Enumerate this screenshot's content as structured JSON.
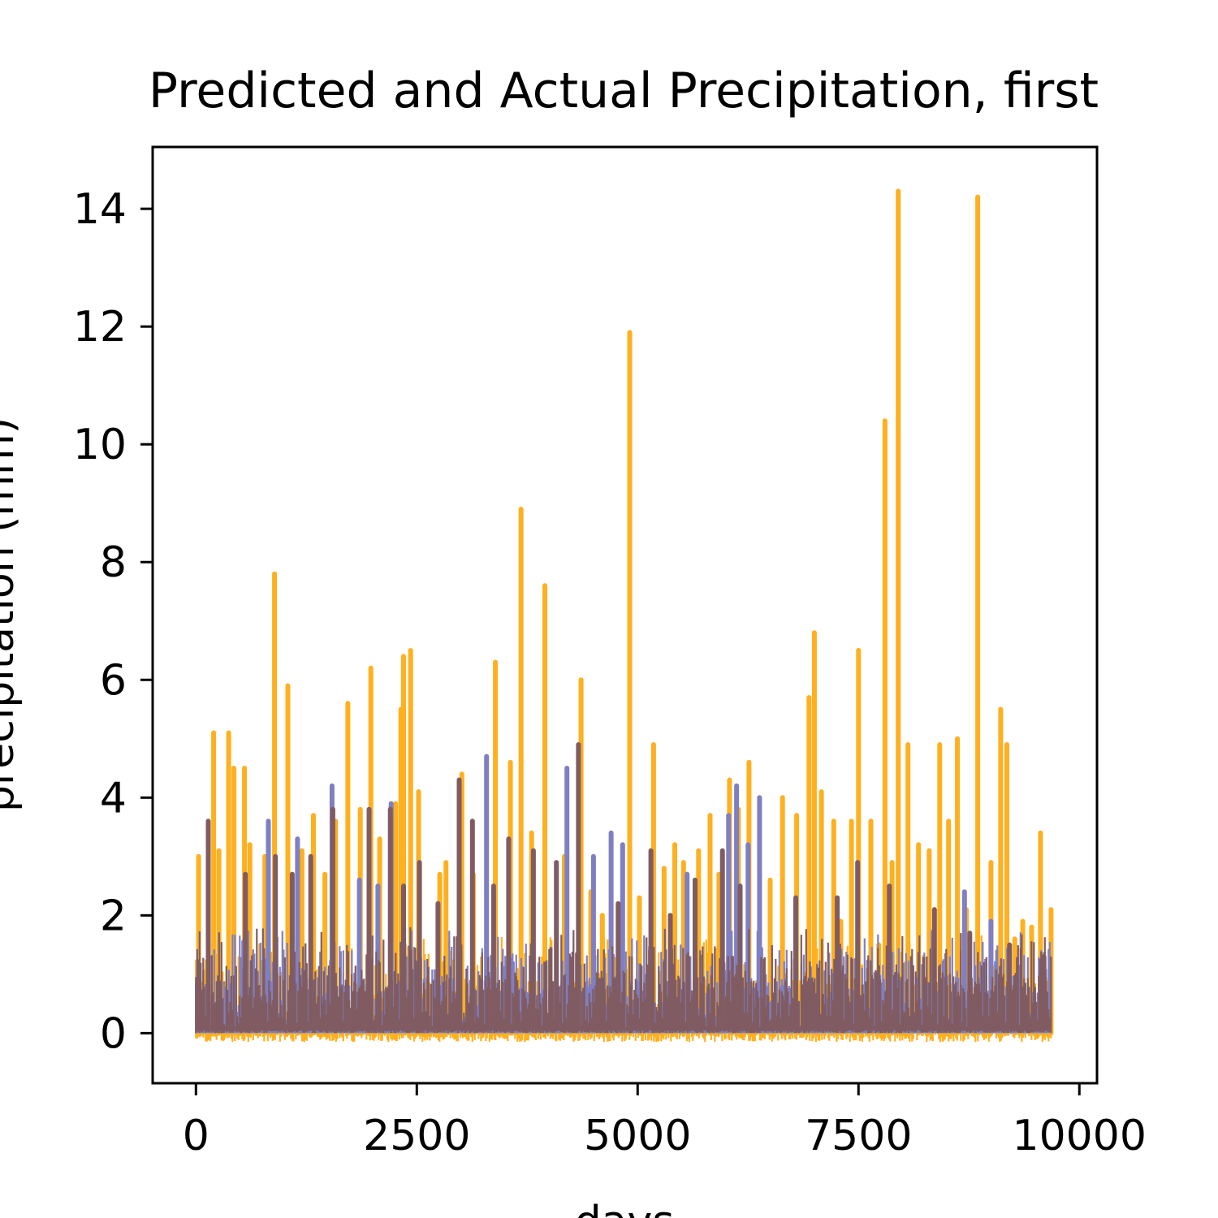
{
  "chart_data": {
    "type": "line",
    "title": "Predicted and Actual Precipitation, first",
    "xlabel": "days",
    "ylabel": "precipitation (mm)",
    "xlim": [
      -490,
      10200
    ],
    "ylim": [
      -0.85,
      15.05
    ],
    "xticks": [
      0,
      2500,
      5000,
      7500,
      10000
    ],
    "yticks": [
      0,
      2,
      4,
      6,
      8,
      10,
      12,
      14
    ],
    "x_range": [
      0,
      9690
    ],
    "grid": false,
    "legend": "none",
    "series": [
      {
        "color": "#FFB01F",
        "baseline": 0,
        "dip_min": -0.15,
        "spikes": [
          [
            30,
            3.0
          ],
          [
            200,
            5.1
          ],
          [
            260,
            3.1
          ],
          [
            370,
            5.1
          ],
          [
            430,
            4.5
          ],
          [
            550,
            4.5
          ],
          [
            610,
            3.2
          ],
          [
            780,
            3.0
          ],
          [
            890,
            7.8
          ],
          [
            1040,
            5.9
          ],
          [
            1200,
            3.1
          ],
          [
            1330,
            3.7
          ],
          [
            1460,
            2.7
          ],
          [
            1580,
            3.6
          ],
          [
            1720,
            5.6
          ],
          [
            1860,
            3.8
          ],
          [
            1980,
            6.2
          ],
          [
            2080,
            3.3
          ],
          [
            2260,
            3.9
          ],
          [
            2320,
            5.5
          ],
          [
            2350,
            6.4
          ],
          [
            2430,
            6.5
          ],
          [
            2520,
            4.1
          ],
          [
            2760,
            2.7
          ],
          [
            2830,
            2.9
          ],
          [
            3010,
            4.4
          ],
          [
            3140,
            2.7
          ],
          [
            3390,
            6.3
          ],
          [
            3560,
            4.6
          ],
          [
            3680,
            8.9
          ],
          [
            3800,
            3.4
          ],
          [
            3950,
            7.6
          ],
          [
            4170,
            3.0
          ],
          [
            4360,
            6.0
          ],
          [
            4470,
            2.4
          ],
          [
            4600,
            2.0
          ],
          [
            4910,
            11.9
          ],
          [
            5020,
            2.3
          ],
          [
            5180,
            4.9
          ],
          [
            5300,
            2.8
          ],
          [
            5420,
            3.2
          ],
          [
            5520,
            2.9
          ],
          [
            5690,
            3.1
          ],
          [
            5820,
            3.7
          ],
          [
            5920,
            2.7
          ],
          [
            6040,
            4.3
          ],
          [
            6140,
            3.8
          ],
          [
            6260,
            4.6
          ],
          [
            6500,
            2.6
          ],
          [
            6640,
            4.0
          ],
          [
            6800,
            3.7
          ],
          [
            6940,
            5.7
          ],
          [
            7000,
            6.8
          ],
          [
            7080,
            4.1
          ],
          [
            7220,
            3.6
          ],
          [
            7300,
            1.9
          ],
          [
            7420,
            3.6
          ],
          [
            7500,
            6.5
          ],
          [
            7640,
            3.6
          ],
          [
            7730,
            1.5
          ],
          [
            7800,
            10.4
          ],
          [
            7880,
            2.9
          ],
          [
            7950,
            14.3
          ],
          [
            8060,
            4.9
          ],
          [
            8180,
            3.2
          ],
          [
            8300,
            3.1
          ],
          [
            8420,
            4.9
          ],
          [
            8520,
            3.6
          ],
          [
            8620,
            5.0
          ],
          [
            8720,
            2.1
          ],
          [
            8850,
            14.2
          ],
          [
            9000,
            2.9
          ],
          [
            9110,
            5.5
          ],
          [
            9180,
            4.9
          ],
          [
            9270,
            1.6
          ],
          [
            9360,
            1.9
          ],
          [
            9460,
            1.8
          ],
          [
            9560,
            3.4
          ],
          [
            9680,
            2.1
          ]
        ]
      },
      {
        "color": "#7F7FC2",
        "baseline": 0.05,
        "dip_min": 0,
        "spikes": [
          [
            820,
            3.6
          ],
          [
            1150,
            3.3
          ],
          [
            1540,
            4.2
          ],
          [
            1850,
            2.6
          ],
          [
            2060,
            2.5
          ],
          [
            2210,
            3.9
          ],
          [
            3290,
            4.7
          ],
          [
            4200,
            4.5
          ],
          [
            4500,
            3.0
          ],
          [
            4700,
            3.4
          ],
          [
            4830,
            3.2
          ],
          [
            5560,
            2.7
          ],
          [
            6030,
            3.7
          ],
          [
            6120,
            4.2
          ],
          [
            6250,
            3.2
          ],
          [
            6380,
            4.0
          ],
          [
            8700,
            2.4
          ],
          [
            9000,
            1.9
          ]
        ]
      },
      {
        "color": "#805C62",
        "baseline": 0.1,
        "dip_min": 0.05,
        "spikes": [
          [
            140,
            3.6
          ],
          [
            560,
            2.7
          ],
          [
            900,
            3.0
          ],
          [
            1090,
            2.7
          ],
          [
            1300,
            3.0
          ],
          [
            1550,
            3.8
          ],
          [
            1960,
            3.8
          ],
          [
            2200,
            3.8
          ],
          [
            2350,
            2.5
          ],
          [
            2530,
            2.9
          ],
          [
            2740,
            2.2
          ],
          [
            2980,
            4.3
          ],
          [
            3130,
            3.6
          ],
          [
            3370,
            2.5
          ],
          [
            3540,
            3.3
          ],
          [
            3820,
            3.1
          ],
          [
            4080,
            2.9
          ],
          [
            4330,
            4.9
          ],
          [
            4780,
            2.2
          ],
          [
            5150,
            3.1
          ],
          [
            5370,
            2.0
          ],
          [
            5650,
            2.6
          ],
          [
            5960,
            3.1
          ],
          [
            6160,
            2.5
          ],
          [
            6790,
            2.3
          ],
          [
            7260,
            2.3
          ],
          [
            7490,
            2.9
          ],
          [
            7850,
            2.5
          ],
          [
            8360,
            2.1
          ],
          [
            8760,
            1.7
          ],
          [
            9210,
            1.5
          ],
          [
            9600,
            1.3
          ]
        ]
      }
    ]
  }
}
